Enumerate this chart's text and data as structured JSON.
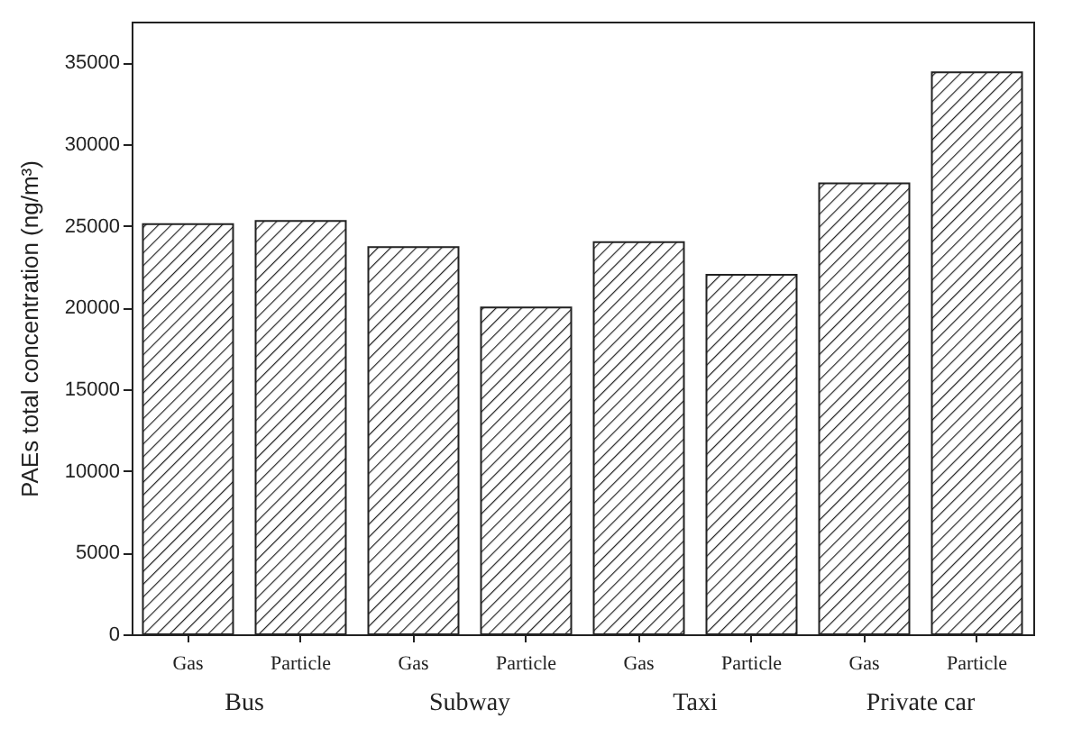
{
  "chart_data": {
    "type": "bar",
    "ylabel": "PAEs total concentration (ng/m³)",
    "categories": [
      "Gas",
      "Particle",
      "Gas",
      "Particle",
      "Gas",
      "Particle",
      "Gas",
      "Particle"
    ],
    "values": [
      25100,
      25300,
      23700,
      20000,
      24000,
      22000,
      27600,
      34400
    ],
    "color": "#222222",
    "ylim": [
      0,
      37500
    ],
    "yticks": [
      0,
      5000,
      10000,
      15000,
      20000,
      25000,
      30000,
      35000
    ],
    "annotations": [
      "Bus",
      "Subway",
      "Taxi",
      "Private car"
    ],
    "grid": false
  }
}
